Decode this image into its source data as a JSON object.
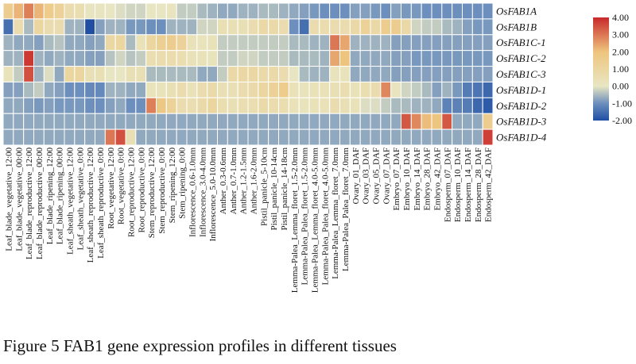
{
  "caption": "Figure 5 FAB1 gene expression profiles in different tissues",
  "chart_data": {
    "type": "heatmap",
    "rows": [
      "OsFAB1A",
      "OsFAB1B",
      "OsFAB1C-1",
      "OsFAB1C-2",
      "OsFAB1C-3",
      "OsFAB1D-1",
      "OsFAB1D-2",
      "OsFAB1D-3",
      "OsFAB1D-4"
    ],
    "columns": [
      "Leaf_blade_vegetative_12:00",
      "Leaf_blade_vegetative_00:00",
      "Leaf_blade_reproductive_12:00",
      "Leaf_blade_reproductive_00:00",
      "Leaf_blade_ripening_12:00",
      "Leaf_blade_ripening_00:00",
      "Leaf_sheath_vegetative_12:00",
      "Leaf_sheath_vegetative_0:00",
      "Leaf_sheath_reproductive_12:00",
      "Leaf_sheath_reproductive_0:00",
      "Root_vegetative_12:00",
      "Root_vegetative_0:00",
      "Root_reproductive_12:00",
      "Root_reproductive_0:00",
      "Stem_reproductive_12:00",
      "Stem_reproductive_0:00",
      "Stem_ripening_12:00",
      "Stem_ripening_0:00",
      "Inflorescence_0.6-1.0mm",
      "Inflorescence_3.0-4.0mm",
      "Inflorescence_5.0-10.0mm",
      "Anther_0.3-0.6mm",
      "Anther_0.7-1.0mm",
      "Anther_1.2-1.5mm",
      "Anther_1.6-2.0mm",
      "Pistil_panicle_5-10cm",
      "Pistil_panicle_10-14cm",
      "Pistil_panicle_14-18cm",
      "Lemma-Palea_Lemma_floret_1.5-2.0mm",
      "Lemma-Palea_Palea_floret_1.5-2.0mm",
      "Lemma-Palea_Lemma_floret_4.0-5.0mm",
      "Lemma-Palea_Palea_floret_4.0-5.0mm",
      "Lemma-Palea_Lemma_floret_7.0mm",
      "Lemma-Palea_Palea_floret_7.0mm",
      "Ovary_01_DAF",
      "Ovary_03_DAF",
      "Ovary_05_DAF",
      "Ovary_07_DAF",
      "Embryo_07_DAF",
      "Embryo_10_DAF",
      "Embryo_14_DAF",
      "Embryo_28_DAF",
      "Embryo_42_DAF",
      "Endosperm_07_DAF",
      "Endosperm_10_DAF",
      "Endosperm_14_DAF",
      "Endosperm_28_DAF",
      "Endosperm_42_DAF"
    ],
    "values": [
      [
        1.5,
        2.2,
        2.9,
        2.2,
        1.6,
        1.2,
        0.6,
        0.5,
        0.1,
        0.1,
        0.0,
        -0.1,
        -0.2,
        -0.2,
        0.0,
        0.0,
        0.1,
        -0.3,
        -0.3,
        -0.5,
        -0.6,
        -0.7,
        -0.7,
        -0.6,
        -0.6,
        -0.5,
        -0.5,
        -0.6,
        -0.7,
        -0.8,
        -0.9,
        -1.0,
        -1.0,
        -1.0,
        -0.8,
        -0.8,
        -0.9,
        -1.0,
        -0.8,
        -0.9,
        -0.9,
        -1.0,
        -1.0,
        -1.0,
        -1.0,
        -1.0,
        -1.0,
        -1.0
      ],
      [
        -1.5,
        0.6,
        -0.5,
        1.0,
        0.6,
        0.6,
        -0.6,
        -0.6,
        -2.0,
        -0.8,
        -0.6,
        -0.6,
        -0.9,
        -0.9,
        -1.0,
        -1.0,
        -0.6,
        -0.6,
        -0.6,
        -0.2,
        -0.2,
        0.4,
        0.4,
        0.4,
        0.6,
        0.8,
        0.7,
        0.6,
        -1.0,
        -1.5,
        0.6,
        0.6,
        0.6,
        0.6,
        0.8,
        1.2,
        0.8,
        1.5,
        1.5,
        0.8,
        -0.2,
        -0.3,
        -0.3,
        -0.5,
        -0.6,
        -0.8,
        -0.9,
        -0.9
      ],
      [
        -0.6,
        -0.7,
        -0.7,
        -0.8,
        -0.5,
        -0.4,
        -0.7,
        -0.7,
        -0.8,
        -0.7,
        0.9,
        1.0,
        -0.5,
        0.3,
        1.0,
        1.4,
        1.5,
        1.2,
        0.3,
        0.2,
        0.3,
        -0.3,
        -0.3,
        -0.3,
        -0.3,
        -0.3,
        -0.3,
        -0.3,
        -0.5,
        -0.5,
        -0.6,
        -0.6,
        3.0,
        2.4,
        -0.6,
        -0.6,
        -0.6,
        -0.6,
        -0.8,
        -0.8,
        -0.8,
        -0.8,
        -0.8,
        -0.8,
        -0.8,
        -0.8,
        -0.8,
        -0.8
      ],
      [
        -0.6,
        -0.6,
        3.8,
        -0.6,
        -0.7,
        -0.6,
        -0.7,
        -0.7,
        -0.8,
        -0.8,
        -0.4,
        -0.2,
        -0.4,
        -0.3,
        0.5,
        0.6,
        0.6,
        0.5,
        0.3,
        0.3,
        0.2,
        -0.3,
        -0.3,
        -0.2,
        -0.2,
        -0.3,
        -0.3,
        -0.3,
        -0.5,
        -0.5,
        -0.5,
        -0.6,
        2.4,
        2.0,
        -0.7,
        -0.7,
        -0.7,
        -0.7,
        -0.8,
        -0.8,
        -0.9,
        -0.9,
        -0.9,
        -0.9,
        -0.9,
        -0.9,
        -0.9,
        -0.9
      ],
      [
        0.2,
        -0.3,
        3.5,
        -0.6,
        -0.1,
        -0.7,
        1.0,
        1.0,
        0.4,
        0.4,
        0.0,
        0.0,
        0.4,
        0.4,
        -0.5,
        -0.5,
        -0.5,
        -0.5,
        -0.5,
        -0.7,
        -0.7,
        -0.3,
        0.8,
        0.9,
        0.9,
        0.7,
        0.7,
        0.6,
        0.0,
        -0.5,
        -0.6,
        -0.6,
        0.2,
        0.2,
        -0.7,
        -0.7,
        -0.7,
        -0.7,
        -0.8,
        -0.8,
        -0.8,
        -0.8,
        -0.8,
        -0.8,
        -0.8,
        -0.8,
        -0.8,
        -0.8
      ],
      [
        -0.8,
        -0.8,
        -0.5,
        -0.3,
        -0.7,
        -0.8,
        -1.0,
        -1.0,
        -1.1,
        -1.1,
        -0.6,
        -0.6,
        -0.7,
        -0.7,
        0.2,
        0.2,
        0.4,
        0.6,
        0.3,
        0.6,
        0.7,
        0.4,
        0.4,
        0.6,
        0.7,
        1.0,
        1.2,
        1.6,
        0.3,
        0.2,
        0.3,
        0.3,
        0.4,
        0.5,
        0.3,
        0.5,
        0.6,
        2.8,
        0.1,
        -0.2,
        -0.3,
        -0.5,
        -0.8,
        -0.6,
        -0.9,
        -1.3,
        -1.4,
        -1.6
      ],
      [
        -0.7,
        -0.7,
        -0.8,
        -0.9,
        -0.8,
        -0.9,
        -0.9,
        -0.9,
        -1.0,
        -1.0,
        -0.8,
        -0.7,
        -1.0,
        -1.0,
        2.9,
        1.8,
        1.2,
        0.6,
        0.5,
        0.7,
        1.0,
        0.5,
        0.4,
        0.5,
        0.5,
        0.7,
        0.6,
        0.5,
        0.3,
        0.2,
        0.3,
        0.3,
        0.6,
        0.4,
        0.3,
        -0.1,
        -0.1,
        -0.3,
        -0.5,
        -0.5,
        -0.6,
        -0.6,
        -0.7,
        -1.2,
        -1.2,
        -1.3,
        -1.6,
        -1.8
      ],
      [
        -0.7,
        -0.7,
        -0.7,
        -0.7,
        -0.7,
        -0.7,
        -0.7,
        -0.7,
        -0.7,
        -0.7,
        -0.7,
        -0.7,
        -0.7,
        -0.7,
        -0.7,
        -0.7,
        -0.7,
        -0.7,
        -0.7,
        -0.7,
        -0.7,
        -0.7,
        -0.7,
        -0.7,
        -0.7,
        -0.7,
        -0.7,
        -0.7,
        -0.7,
        -0.7,
        -0.7,
        -0.7,
        -0.7,
        -0.7,
        -0.7,
        -0.7,
        -0.7,
        -0.7,
        -0.7,
        3.4,
        2.8,
        2.1,
        2.0,
        3.4,
        -0.7,
        -0.7,
        -0.7,
        1.5
      ],
      [
        -0.7,
        -0.7,
        -0.7,
        -0.7,
        -0.7,
        -0.7,
        -0.7,
        -0.7,
        -0.7,
        -0.7,
        3.0,
        3.5,
        0.4,
        -0.7,
        -0.7,
        -0.7,
        -0.7,
        -0.7,
        -0.7,
        -0.7,
        -0.7,
        -0.7,
        -0.7,
        -0.7,
        -0.7,
        -0.7,
        -0.7,
        -0.7,
        -0.7,
        -0.7,
        -0.7,
        -0.7,
        -0.7,
        -0.7,
        -0.7,
        -0.7,
        -0.7,
        -0.7,
        -0.7,
        -0.7,
        -0.7,
        -0.7,
        -0.7,
        -0.7,
        -0.7,
        -0.7,
        -0.7,
        3.7
      ]
    ],
    "color_scale": {
      "min": -2.0,
      "max": 4.0,
      "stops": [
        [
          -2.0,
          "#1f4ea3"
        ],
        [
          -1.0,
          "#6c8fbd"
        ],
        [
          0.0,
          "#e8e6c2"
        ],
        [
          2.0,
          "#eec57e"
        ],
        [
          4.0,
          "#c8292b"
        ]
      ]
    },
    "legend_ticks": [
      "4.00",
      "3.00",
      "2.00",
      "1.00",
      "0.00",
      "-1.00",
      "-2.00"
    ],
    "legend_placement": "right"
  }
}
